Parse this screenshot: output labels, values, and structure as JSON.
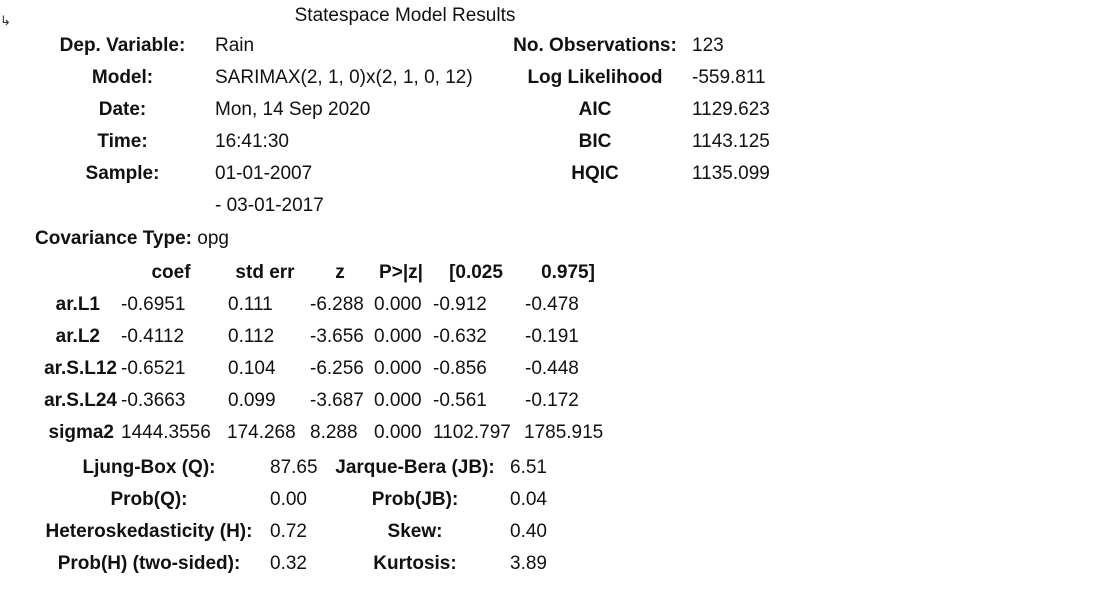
{
  "output_prompt_glyph": "↳",
  "title": "Statespace Model Results",
  "summary": {
    "left": [
      {
        "label": "Dep. Variable:",
        "value": "Rain"
      },
      {
        "label": "Model:",
        "value": "SARIMAX(2, 1, 0)x(2, 1, 0, 12)"
      },
      {
        "label": "Date:",
        "value": "Mon, 14 Sep 2020"
      },
      {
        "label": "Time:",
        "value": "16:41:30"
      },
      {
        "label": "Sample:",
        "value": "01-01-2007"
      },
      {
        "label": "",
        "value": "- 03-01-2017"
      }
    ],
    "right": [
      {
        "label": "No. Observations:",
        "value": "123"
      },
      {
        "label": "Log Likelihood",
        "value": "-559.811"
      },
      {
        "label": "AIC",
        "value": "1129.623"
      },
      {
        "label": "BIC",
        "value": "1143.125"
      },
      {
        "label": "HQIC",
        "value": "1135.099"
      }
    ],
    "covariance_label": "Covariance Type:",
    "covariance_value": "opg"
  },
  "coef_table": {
    "headers": [
      "coef",
      "std err",
      "z",
      "P>|z|",
      "[0.025",
      "0.975]"
    ],
    "rows": [
      {
        "name": "ar.L1",
        "coef": "-0.6951",
        "std_err": "0.111",
        "z": "-6.288",
        "p": "0.000",
        "lo": "-0.912",
        "hi": "-0.478"
      },
      {
        "name": "ar.L2",
        "coef": "-0.4112",
        "std_err": "0.112",
        "z": "-3.656",
        "p": "0.000",
        "lo": "-0.632",
        "hi": "-0.191"
      },
      {
        "name": "ar.S.L12",
        "coef": "-0.6521",
        "std_err": "0.104",
        "z": "-6.256",
        "p": "0.000",
        "lo": "-0.856",
        "hi": "-0.448"
      },
      {
        "name": "ar.S.L24",
        "coef": "-0.3663",
        "std_err": "0.099",
        "z": "-3.687",
        "p": "0.000",
        "lo": "-0.561",
        "hi": "-0.172"
      },
      {
        "name": "sigma2",
        "coef": "1444.3556",
        "std_err": "174.268",
        "z": "8.288",
        "p": "0.000",
        "lo": "1102.797",
        "hi": "1785.915"
      }
    ]
  },
  "diagnostics": [
    {
      "label": "Ljung-Box (Q):",
      "value": "87.65",
      "label2": "Jarque-Bera (JB):",
      "value2": "6.51"
    },
    {
      "label": "Prob(Q):",
      "value": "0.00",
      "label2": "Prob(JB):",
      "value2": "0.04"
    },
    {
      "label": "Heteroskedasticity (H):",
      "value": "0.72",
      "label2": "Skew:",
      "value2": "0.40"
    },
    {
      "label": "Prob(H) (two-sided):",
      "value": "0.32",
      "label2": "Kurtosis:",
      "value2": "3.89"
    }
  ]
}
